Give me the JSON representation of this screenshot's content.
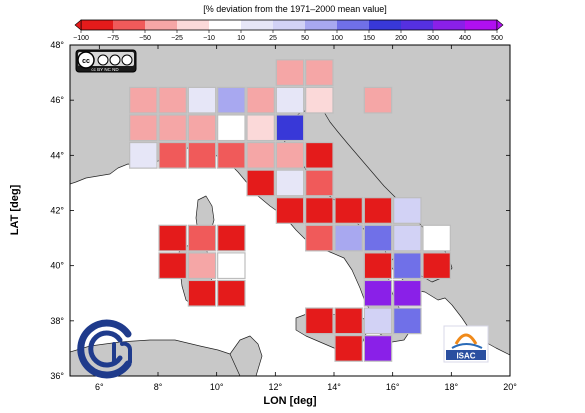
{
  "colorbar": {
    "title": "[% deviation from the 1971–2000 mean value]",
    "ticks": [
      "−100",
      "−75",
      "−50",
      "−25",
      "−10",
      "10",
      "25",
      "50",
      "100",
      "150",
      "200",
      "300",
      "400",
      "500"
    ]
  },
  "map": {
    "ylabel": "LAT [deg]",
    "xlabel": "LON [deg]",
    "lon_ticks": [
      "6°",
      "8°",
      "10°",
      "12°",
      "14°",
      "16°",
      "18°",
      "20°"
    ],
    "lat_ticks": [
      "36°",
      "38°",
      "40°",
      "42°",
      "44°",
      "46°",
      "48°"
    ],
    "lon_range": [
      5,
      20
    ],
    "lat_range": [
      36,
      48
    ]
  },
  "logos": {
    "license": "cc BY NC ND",
    "institute": "ISAC"
  },
  "colors": {
    "sea": "#ffffff",
    "land": "#c8c8c8",
    "coast": "#222222",
    "cell_border": "#bdbdbd"
  },
  "chart_data": {
    "type": "heatmap",
    "units": "% deviation from the 1971-2000 mean value",
    "cell_size_deg": 1,
    "cells": [
      {
        "lon": 12.5,
        "lat": 47.0,
        "v": -40
      },
      {
        "lon": 13.5,
        "lat": 47.0,
        "v": -40
      },
      {
        "lon": 7.5,
        "lat": 46.0,
        "v": -40
      },
      {
        "lon": 8.5,
        "lat": 46.0,
        "v": -40
      },
      {
        "lon": 9.5,
        "lat": 46.0,
        "v": 15
      },
      {
        "lon": 10.5,
        "lat": 46.0,
        "v": 60
      },
      {
        "lon": 11.5,
        "lat": 46.0,
        "v": -40
      },
      {
        "lon": 12.5,
        "lat": 46.0,
        "v": 10
      },
      {
        "lon": 13.5,
        "lat": 46.0,
        "v": -25
      },
      {
        "lon": 15.5,
        "lat": 46.0,
        "v": -50
      },
      {
        "lon": 7.5,
        "lat": 45.0,
        "v": -50
      },
      {
        "lon": 8.5,
        "lat": 45.0,
        "v": -40
      },
      {
        "lon": 9.5,
        "lat": 45.0,
        "v": -40
      },
      {
        "lon": 10.5,
        "lat": 45.0,
        "v": 5
      },
      {
        "lon": 11.5,
        "lat": 45.0,
        "v": -15
      },
      {
        "lon": 12.5,
        "lat": 45.0,
        "v": 180
      },
      {
        "lon": 7.5,
        "lat": 44.0,
        "v": 15
      },
      {
        "lon": 8.5,
        "lat": 44.0,
        "v": -70
      },
      {
        "lon": 9.5,
        "lat": 44.0,
        "v": -70
      },
      {
        "lon": 10.5,
        "lat": 44.0,
        "v": -70
      },
      {
        "lon": 11.5,
        "lat": 44.0,
        "v": -35
      },
      {
        "lon": 12.5,
        "lat": 44.0,
        "v": -45
      },
      {
        "lon": 13.5,
        "lat": 44.0,
        "v": -80
      },
      {
        "lon": 11.5,
        "lat": 43.0,
        "v": -85
      },
      {
        "lon": 12.5,
        "lat": 43.0,
        "v": 20
      },
      {
        "lon": 13.5,
        "lat": 43.0,
        "v": -70
      },
      {
        "lon": 12.5,
        "lat": 42.0,
        "v": -85
      },
      {
        "lon": 13.5,
        "lat": 42.0,
        "v": -80
      },
      {
        "lon": 14.5,
        "lat": 42.0,
        "v": -80
      },
      {
        "lon": 15.5,
        "lat": 42.0,
        "v": -90
      },
      {
        "lon": 16.5,
        "lat": 42.0,
        "v": 25
      },
      {
        "lon": 8.5,
        "lat": 41.0,
        "v": -85
      },
      {
        "lon": 9.5,
        "lat": 41.0,
        "v": -70
      },
      {
        "lon": 10.5,
        "lat": 41.0,
        "v": -85
      },
      {
        "lon": 13.5,
        "lat": 41.0,
        "v": -70
      },
      {
        "lon": 14.5,
        "lat": 41.0,
        "v": 60
      },
      {
        "lon": 15.5,
        "lat": 41.0,
        "v": 120
      },
      {
        "lon": 16.5,
        "lat": 41.0,
        "v": 25
      },
      {
        "lon": 17.5,
        "lat": 41.0,
        "v": 5
      },
      {
        "lon": 8.5,
        "lat": 40.0,
        "v": -85
      },
      {
        "lon": 9.5,
        "lat": 40.0,
        "v": -35
      },
      {
        "lon": 10.5,
        "lat": 40.0,
        "v": 0
      },
      {
        "lon": 15.5,
        "lat": 40.0,
        "v": -80
      },
      {
        "lon": 16.5,
        "lat": 40.0,
        "v": 100
      },
      {
        "lon": 17.5,
        "lat": 40.0,
        "v": -85
      },
      {
        "lon": 9.5,
        "lat": 39.0,
        "v": -80
      },
      {
        "lon": 10.5,
        "lat": 39.0,
        "v": -90
      },
      {
        "lon": 15.5,
        "lat": 39.0,
        "v": 380
      },
      {
        "lon": 16.5,
        "lat": 39.0,
        "v": 380
      },
      {
        "lon": 13.5,
        "lat": 38.0,
        "v": -80
      },
      {
        "lon": 14.5,
        "lat": 38.0,
        "v": -80
      },
      {
        "lon": 15.5,
        "lat": 38.0,
        "v": 40
      },
      {
        "lon": 16.5,
        "lat": 38.0,
        "v": 140
      },
      {
        "lon": 14.5,
        "lat": 37.0,
        "v": -80
      },
      {
        "lon": 15.5,
        "lat": 37.0,
        "v": 380
      }
    ],
    "color_bins": [
      {
        "from": -100,
        "to": -75,
        "color": "#e41b1b"
      },
      {
        "from": -75,
        "to": -50,
        "color": "#f05a5a"
      },
      {
        "from": -50,
        "to": -25,
        "color": "#f5a6a6"
      },
      {
        "from": -25,
        "to": -10,
        "color": "#fbd9d9"
      },
      {
        "from": -10,
        "to": 10,
        "color": "#ffffff"
      },
      {
        "from": 10,
        "to": 25,
        "color": "#e6e6f7"
      },
      {
        "from": 25,
        "to": 50,
        "color": "#d2d2f5"
      },
      {
        "from": 50,
        "to": 100,
        "color": "#a8a8f0"
      },
      {
        "from": 100,
        "to": 150,
        "color": "#7070e8"
      },
      {
        "from": 150,
        "to": 200,
        "color": "#3838d8"
      },
      {
        "from": 200,
        "to": 300,
        "color": "#5530e0"
      },
      {
        "from": 300,
        "to": 400,
        "color": "#8a20e8"
      },
      {
        "from": 400,
        "to": 500,
        "color": "#b010f0"
      }
    ]
  }
}
